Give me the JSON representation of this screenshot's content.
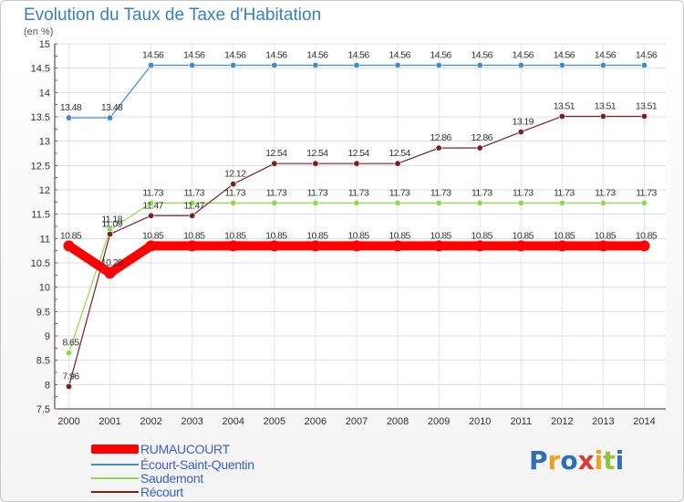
{
  "title": "Evolution du Taux de Taxe d'Habitation",
  "unit_label": "(en %)",
  "brand": {
    "letters": [
      "P",
      "r",
      "o",
      "x",
      "i",
      "t",
      "i"
    ],
    "colors": [
      "#2f6fb7",
      "#f0a020",
      "#2f6fb7",
      "#e03a2f",
      "#f0a020",
      "#8cc63f",
      "#2f6fb7"
    ]
  },
  "chart_data": {
    "type": "line",
    "x": [
      2000,
      2001,
      2002,
      2003,
      2004,
      2005,
      2006,
      2007,
      2008,
      2009,
      2010,
      2011,
      2012,
      2013,
      2014
    ],
    "ylim": [
      7.5,
      15
    ],
    "yticks": [
      "7.5",
      "8",
      "8.5",
      "9",
      "9.5",
      "10",
      "10.5",
      "11",
      "11.5",
      "12",
      "12.5",
      "13",
      "13.5",
      "14",
      "14.5",
      "15"
    ],
    "grid": true,
    "legend_position": "bottom-left",
    "series": [
      {
        "name": "RUMAUCOURT",
        "color": "#ff0000",
        "values": [
          10.85,
          10.29,
          10.85,
          10.85,
          10.85,
          10.85,
          10.85,
          10.85,
          10.85,
          10.85,
          10.85,
          10.85,
          10.85,
          10.85,
          10.85
        ],
        "labels": [
          "10.85",
          "10.29",
          "10.85",
          "10.85",
          "10.85",
          "10.85",
          "10.85",
          "10.85",
          "10.85",
          "10.85",
          "10.85",
          "10.85",
          "10.85",
          "10.85",
          "10.85"
        ]
      },
      {
        "name": "Écourt-Saint-Quentin",
        "color": "#3d8bd0",
        "values": [
          13.48,
          13.48,
          14.56,
          14.56,
          14.56,
          14.56,
          14.56,
          14.56,
          14.56,
          14.56,
          14.56,
          14.56,
          14.56,
          14.56,
          14.56
        ],
        "labels": [
          "13.48",
          "13.48",
          "14.56",
          "14.56",
          "14.56",
          "14.56",
          "14.56",
          "14.56",
          "14.56",
          "14.56",
          "14.56",
          "14.56",
          "14.56",
          "14.56",
          "14.56"
        ]
      },
      {
        "name": "Saudemont",
        "color": "#8fda4a",
        "values": [
          8.65,
          11.18,
          11.73,
          11.73,
          11.73,
          11.73,
          11.73,
          11.73,
          11.73,
          11.73,
          11.73,
          11.73,
          11.73,
          11.73,
          11.73
        ],
        "labels": [
          "8.65",
          "11.18",
          "11.73",
          "11.73",
          "11.73",
          "11.73",
          "11.73",
          "11.73",
          "11.73",
          "11.73",
          "11.73",
          "11.73",
          "11.73",
          "11.73",
          "11.73"
        ]
      },
      {
        "name": "Récourt",
        "color": "#7a2020",
        "values": [
          7.96,
          11.09,
          11.47,
          11.47,
          12.12,
          12.54,
          12.54,
          12.54,
          12.54,
          12.86,
          12.86,
          13.19,
          13.51,
          13.51,
          13.51
        ],
        "labels": [
          "7.96",
          "11.09",
          "11.47",
          "11.47",
          "12.12",
          "12.54",
          "12.54",
          "12.54",
          "12.54",
          "12.86",
          "12.86",
          "13.19",
          "13.51",
          "13.51",
          "13.51"
        ]
      }
    ]
  }
}
